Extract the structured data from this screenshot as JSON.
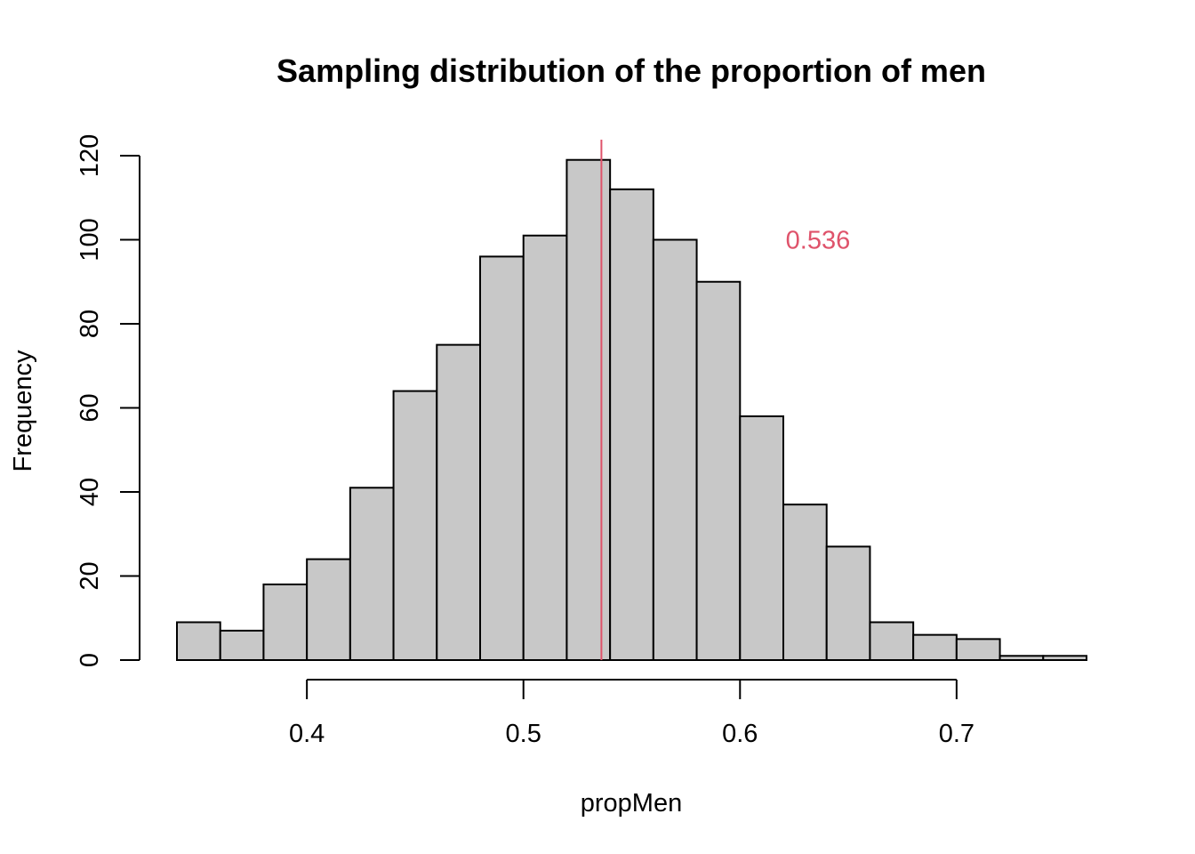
{
  "chart_data": {
    "type": "bar",
    "title": "Sampling distribution of the proportion of men",
    "xlabel": "propMen",
    "ylabel": "Frequency",
    "bin_edges": [
      0.34,
      0.36,
      0.38,
      0.4,
      0.42,
      0.44,
      0.46,
      0.48,
      0.5,
      0.52,
      0.54,
      0.56,
      0.58,
      0.6,
      0.62,
      0.64,
      0.66,
      0.68,
      0.7,
      0.72,
      0.74,
      0.76
    ],
    "values": [
      9,
      7,
      18,
      24,
      41,
      64,
      75,
      96,
      101,
      119,
      112,
      100,
      90,
      58,
      37,
      27,
      9,
      6,
      5,
      1,
      1
    ],
    "x_ticks": [
      0.4,
      0.5,
      0.6,
      0.7
    ],
    "x_tick_labels": [
      "0.4",
      "0.5",
      "0.6",
      "0.7"
    ],
    "y_ticks": [
      0,
      20,
      40,
      60,
      80,
      100,
      120
    ],
    "y_tick_labels": [
      "0",
      "20",
      "40",
      "60",
      "80",
      "100",
      "120"
    ],
    "xlim": [
      0.34,
      0.76
    ],
    "ylim": [
      0,
      120
    ],
    "bar_color": "#c8c8c8",
    "border_color": "#000000",
    "grid": false,
    "vline": {
      "x": 0.536,
      "color": "#df536b"
    },
    "annotation": {
      "text": "0.536",
      "x": 0.636,
      "y": 100,
      "color": "#df536b"
    }
  }
}
